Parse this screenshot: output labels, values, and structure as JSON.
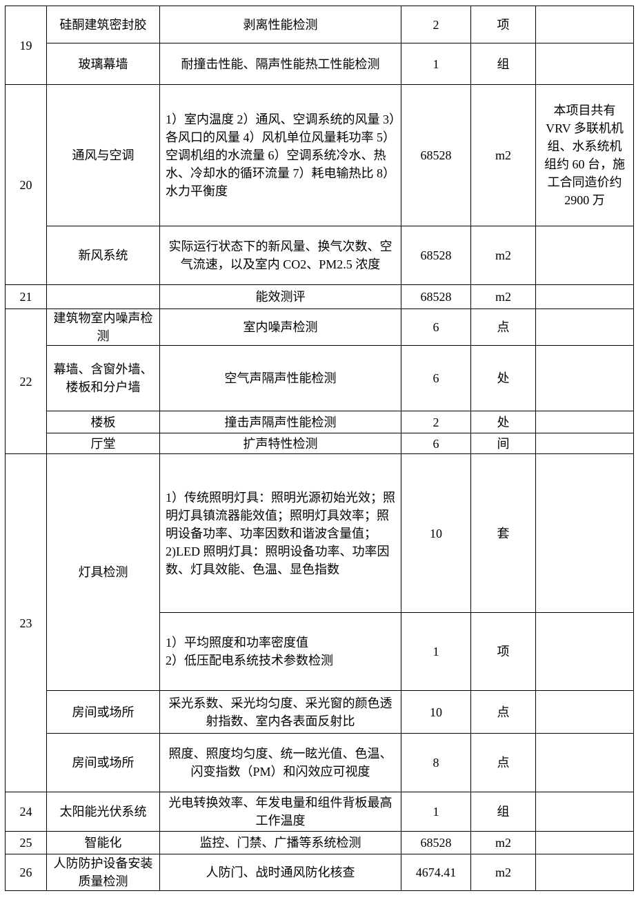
{
  "rows": {
    "r19": {
      "no": "19",
      "a": {
        "item": "硅酮建筑密封胶",
        "content": "剥离性能检测",
        "qty": "2",
        "unit": "项",
        "note": ""
      },
      "b": {
        "item": "玻璃幕墙",
        "content": "耐撞击性能、隔声性能热工性能检测",
        "qty": "1",
        "unit": "组",
        "note": ""
      }
    },
    "r20": {
      "no": "20",
      "a": {
        "item": "通风与空调",
        "content": "1）室内温度 2）通风、空调系统的风量 3）各风口的风量 4）风机单位风量耗功率 5）空调机组的水流量 6）空调系统冷水、热水、冷却水的循环流量 7）耗电输热比 8）水力平衡度",
        "qty": "68528",
        "unit": "m2",
        "note": "本项目共有VRV 多联机机组、水系统机组约 60 台，施工合同造价约 2900 万"
      },
      "b": {
        "item": "新风系统",
        "content": "实际运行状态下的新风量、换气次数、空气流速，以及室内 CO2、PM2.5 浓度",
        "qty": "68528",
        "unit": "m2",
        "note": ""
      }
    },
    "r21": {
      "no": "21",
      "item": "",
      "content": "能效测评",
      "qty": "68528",
      "unit": "m2",
      "note": ""
    },
    "r22": {
      "no": "22",
      "a": {
        "item": "建筑物室内噪声检测",
        "content": "室内噪声检测",
        "qty": "6",
        "unit": "点",
        "note": ""
      },
      "b": {
        "item": "幕墙、含窗外墙、楼板和分户墙",
        "content": "空气声隔声性能检测",
        "qty": "6",
        "unit": "处",
        "note": ""
      },
      "c": {
        "item": "楼板",
        "content": "撞击声隔声性能检测",
        "qty": "2",
        "unit": "处",
        "note": ""
      },
      "d": {
        "item": "厅堂",
        "content": "扩声特性检测",
        "qty": "6",
        "unit": "间",
        "note": ""
      }
    },
    "r23": {
      "no": "23",
      "item_ab": "灯具检测",
      "a": {
        "content": "1）传统照明灯具：照明光源初始光效；照明灯具镇流器能效值；照明灯具效率；照明设备功率、功率因数和谐波含量值；\n2)LED 照明灯具：照明设备功率、功率因数、灯具效能、色温、显色指数",
        "qty": "10",
        "unit": "套",
        "note": ""
      },
      "b": {
        "content": "1）平均照度和功率密度值\n2）低压配电系统技术参数检测",
        "qty": "1",
        "unit": "项",
        "note": ""
      },
      "c": {
        "item": "房间或场所",
        "content": "采光系数、采光均匀度、采光窗的颜色透射指数、室内各表面反射比",
        "qty": "10",
        "unit": "点",
        "note": ""
      },
      "d": {
        "item": "房间或场所",
        "content": "照度、照度均匀度、统一眩光值、色温、闪变指数（PM）和闪效应可视度",
        "qty": "8",
        "unit": "点",
        "note": ""
      }
    },
    "r24": {
      "no": "24",
      "item": "太阳能光伏系统",
      "content": "光电转换效率、年发电量和组件背板最高工作温度",
      "qty": "1",
      "unit": "组",
      "note": ""
    },
    "r25": {
      "no": "25",
      "item": "智能化",
      "content": "监控、门禁、广播等系统检测",
      "qty": "68528",
      "unit": "m2",
      "note": ""
    },
    "r26": {
      "no": "26",
      "item": "人防防护设备安装质量检测",
      "content": "人防门、战时通风防化核查",
      "qty": "4674.41",
      "unit": "m2",
      "note": ""
    }
  }
}
